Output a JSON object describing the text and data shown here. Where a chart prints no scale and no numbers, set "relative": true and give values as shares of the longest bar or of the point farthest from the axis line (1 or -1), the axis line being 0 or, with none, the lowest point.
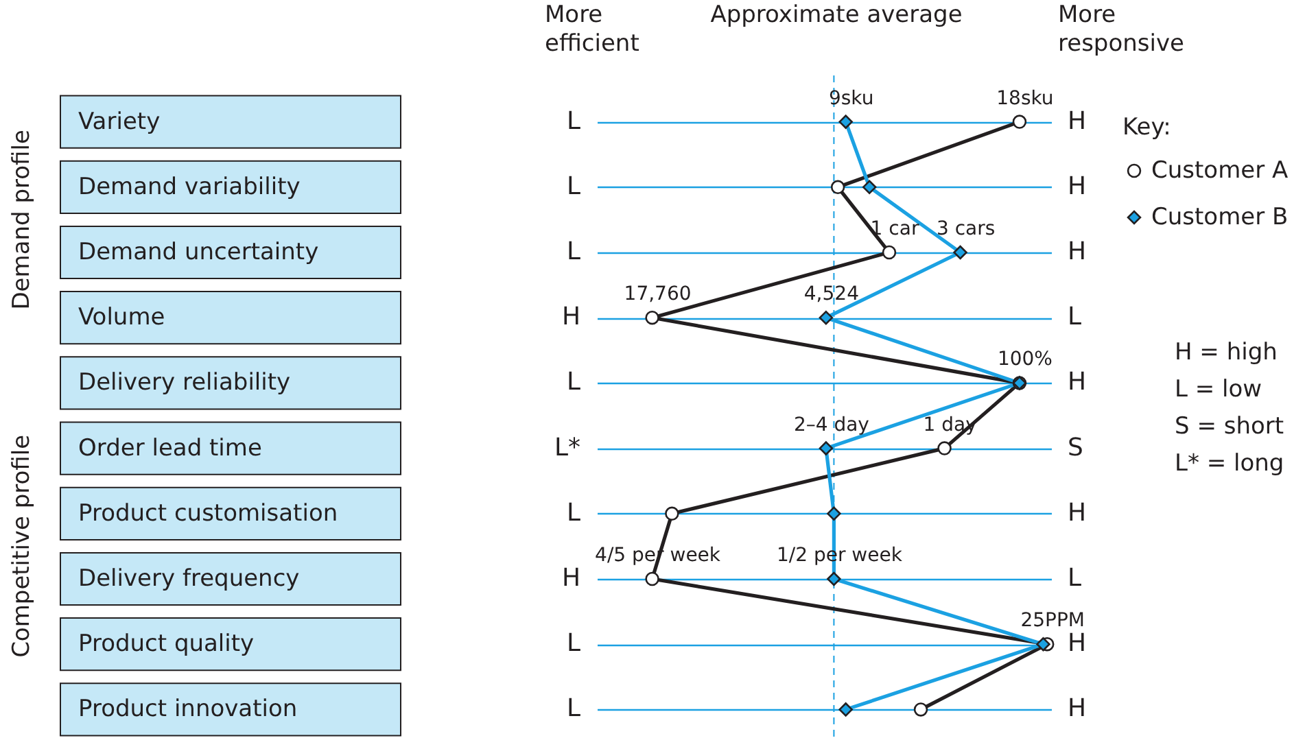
{
  "chart_data": {
    "type": "line",
    "orientation": "horizontal",
    "relative": true,
    "categories": [
      "Variety",
      "Demand variability",
      "Demand uncertainty",
      "Volume",
      "Delivery reliability",
      "Order lead time",
      "Product customisation",
      "Delivery frequency",
      "Product quality",
      "Product innovation"
    ],
    "series": [
      {
        "name": "Customer A",
        "color": "#231f20",
        "marker": "circle",
        "values": [
          0.93,
          0.47,
          0.6,
          0,
          0.93,
          0.74,
          0.05,
          0,
          1,
          0.68
        ]
      },
      {
        "name": "Customer B",
        "color": "#1ba1e2",
        "marker": "diamond",
        "values": [
          0.49,
          0.55,
          0.78,
          0.44,
          0.93,
          0.44,
          0.46,
          0.46,
          0.99,
          0.49
        ]
      }
    ],
    "ref_lines": [
      {
        "axis": "x",
        "value": 0.46,
        "label": "Approximate average",
        "color": "#1ba1e2",
        "line_style": "dashed"
      }
    ],
    "legend": "right",
    "legend_title": "Key:",
    "grid": "y",
    "annotations": [
      {
        "text": "18sku",
        "x": 0.93,
        "y": "Variety"
      },
      {
        "text": "9sku",
        "x": 0.49,
        "y": "Variety"
      },
      {
        "text": "1 car",
        "x": 0.6,
        "y": "Demand uncertainty"
      },
      {
        "text": "3 cars",
        "x": 0.78,
        "y": "Demand uncertainty"
      },
      {
        "text": "17,760",
        "x": 0,
        "y": "Volume"
      },
      {
        "text": "4,524",
        "x": 0.44,
        "y": "Volume"
      },
      {
        "text": "100%",
        "x": 0.93,
        "y": "Delivery reliability"
      },
      {
        "text": "2–4 day",
        "x": 0.44,
        "y": "Order lead time"
      },
      {
        "text": "1 day",
        "x": 0.74,
        "y": "Order lead time"
      },
      {
        "text": "4/5 per week",
        "x": 0,
        "y": "Delivery frequency"
      },
      {
        "text": "1/2 per week",
        "x": 0.46,
        "y": "Delivery frequency"
      },
      {
        "text": "25PPM",
        "x": 1,
        "y": "Product quality"
      },
      "More efficient",
      "More responsive",
      "Demand profile",
      "Competitive profile",
      "H  = high",
      "L  = low",
      "S  = short",
      "L* = long",
      "L",
      "H",
      "L",
      "H",
      "L",
      "H",
      "H",
      "L",
      "L",
      "H",
      "L*",
      "S",
      "L",
      "H",
      "H",
      "L",
      "L",
      "H",
      "L",
      "H"
    ]
  }
}
